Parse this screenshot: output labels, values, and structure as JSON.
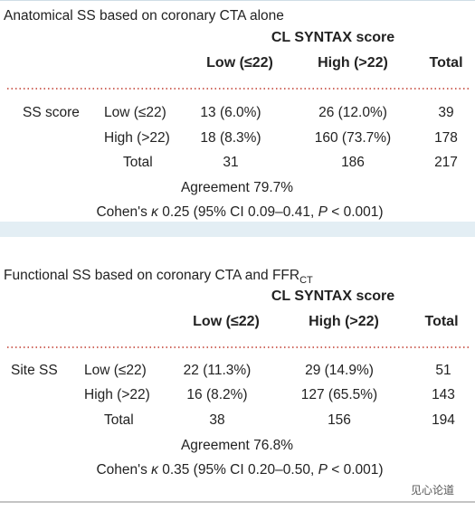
{
  "panels": [
    {
      "title": "Anatomical SS based on coronary CTA alone",
      "header": "CL SYNTAX score",
      "columns": [
        "Low (≤22)",
        "High (>22)",
        "Total"
      ],
      "group_label": "SS score",
      "rows": [
        [
          "Low (≤22)",
          "13 (6.0%)",
          "26 (12.0%)",
          "39"
        ],
        [
          "High (>22)",
          "18 (8.3%)",
          "160 (73.7%)",
          "178"
        ],
        [
          "Total",
          "31",
          "186",
          "217"
        ]
      ],
      "agreement": "Agreement 79.7%",
      "cohen": [
        "Cohen's ",
        "κ",
        " 0.25 (95% CI 0.09–0.41, ",
        "P",
        " < 0.001)"
      ]
    },
    {
      "title": "Functional SS based on coronary CTA and FFR",
      "title_subscript": "CT",
      "header": "CL SYNTAX score",
      "columns": [
        "Low (≤22)",
        "High (>22)",
        "Total"
      ],
      "group_label": "Site SS",
      "rows": [
        [
          "Low (≤22)",
          "22 (11.3%)",
          "29 (14.9%)",
          "51"
        ],
        [
          "High (>22)",
          "16 (8.2%)",
          "127 (65.5%)",
          "143"
        ],
        [
          "Total",
          "38",
          "156",
          "194"
        ]
      ],
      "agreement": "Agreement 76.8%",
      "cohen": [
        "Cohen's ",
        "κ",
        " 0.35 (95% CI 0.20–0.50, ",
        "P",
        " < 0.001)"
      ]
    }
  ],
  "watermark": "见心论道"
}
